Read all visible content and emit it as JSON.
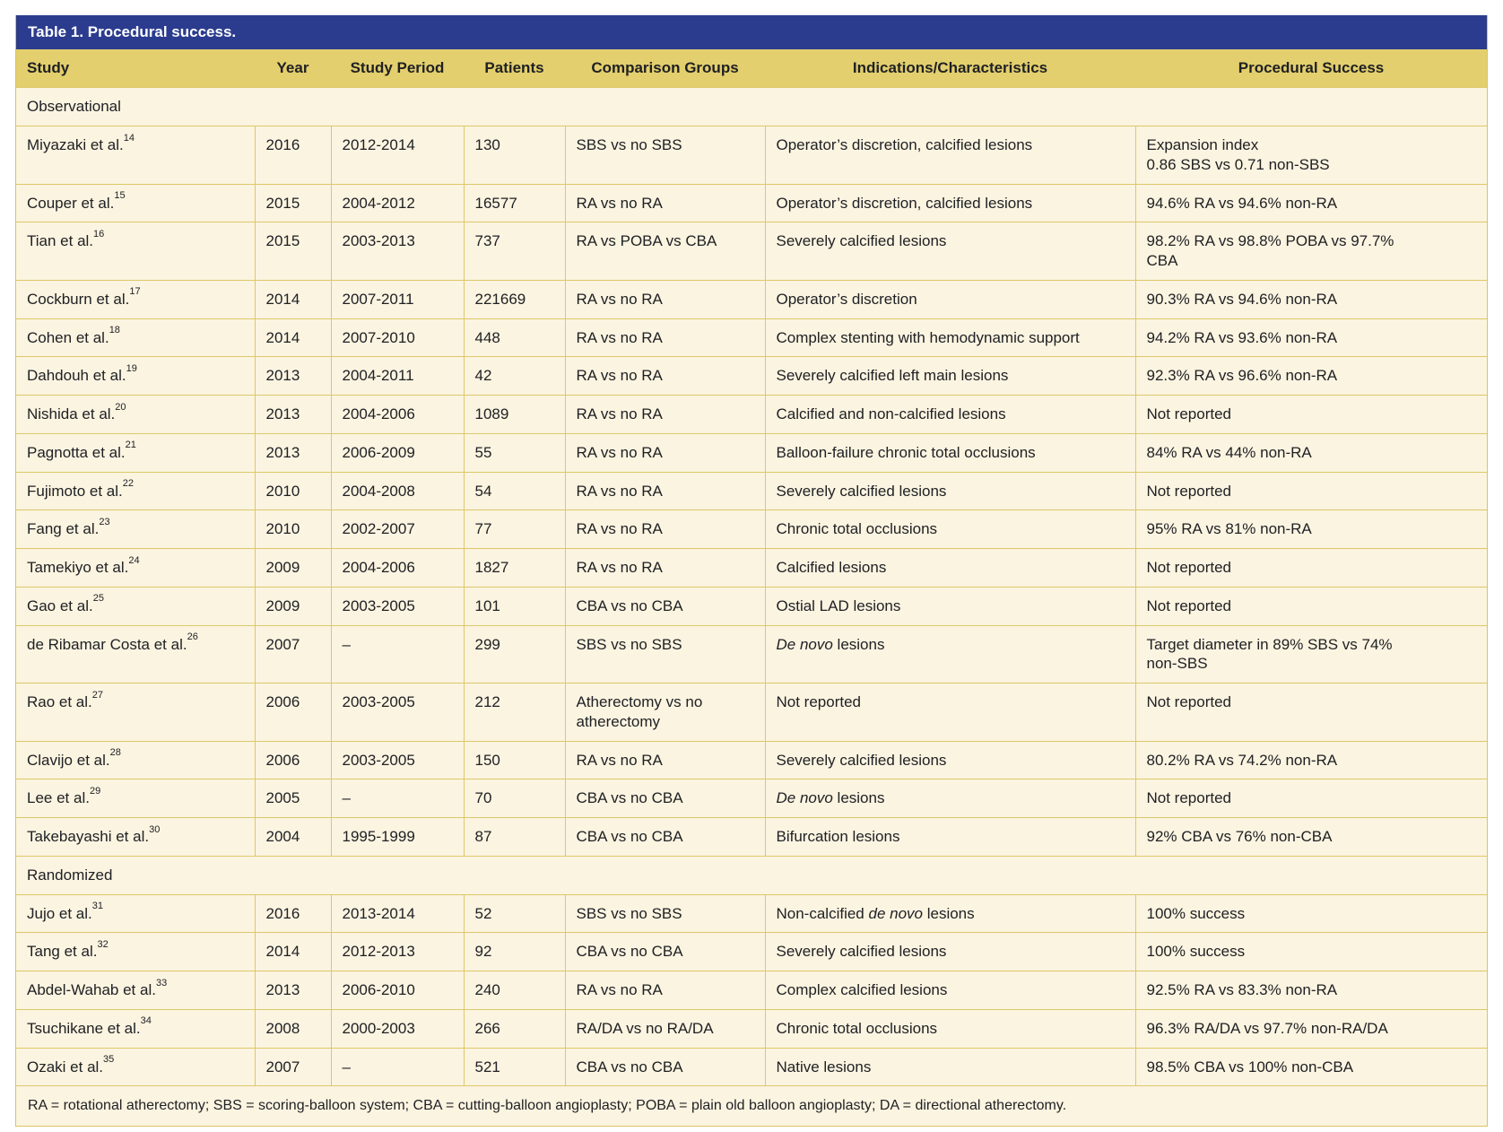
{
  "table": {
    "title": "Table 1. Procedural success.",
    "columns": [
      "Study",
      "Year",
      "Study Period",
      "Patients",
      "Comparison Groups",
      "Indications/Characteristics",
      "Procedural Success"
    ],
    "sections": [
      {
        "label": "Observational",
        "rows": [
          {
            "study": "Miyazaki et al.",
            "ref": "14",
            "year": "2016",
            "period": "2012-2014",
            "patients": "130",
            "comparison": "SBS vs no SBS",
            "indications": "Operator’s discretion, calcified lesions",
            "success": "Expansion index\n0.86 SBS vs 0.71 non-SBS"
          },
          {
            "study": "Couper et al.",
            "ref": "15",
            "year": "2015",
            "period": "2004-2012",
            "patients": "16577",
            "comparison": "RA vs no RA",
            "indications": "Operator’s discretion, calcified lesions",
            "success": "94.6% RA vs 94.6% non-RA"
          },
          {
            "study": "Tian et al.",
            "ref": "16",
            "year": "2015",
            "period": "2003-2013",
            "patients": "737",
            "comparison": "RA vs POBA vs CBA",
            "indications": "Severely calcified lesions",
            "success": "98.2% RA vs 98.8% POBA vs 97.7%\nCBA"
          },
          {
            "study": "Cockburn et al.",
            "ref": "17",
            "year": "2014",
            "period": "2007-2011",
            "patients": "221669",
            "comparison": "RA vs no RA",
            "indications": "Operator’s discretion",
            "success": "90.3% RA vs 94.6% non-RA"
          },
          {
            "study": "Cohen et al.",
            "ref": "18",
            "year": "2014",
            "period": "2007-2010",
            "patients": "448",
            "comparison": "RA vs no RA",
            "indications": "Complex stenting with hemodynamic support",
            "success": "94.2% RA vs 93.6% non-RA"
          },
          {
            "study": "Dahdouh et al.",
            "ref": "19",
            "year": "2013",
            "period": "2004-2011",
            "patients": "42",
            "comparison": "RA vs no RA",
            "indications": "Severely calcified left main lesions",
            "success": "92.3% RA vs 96.6% non-RA"
          },
          {
            "study": "Nishida et al.",
            "ref": "20",
            "year": "2013",
            "period": "2004-2006",
            "patients": "1089",
            "comparison": "RA vs no RA",
            "indications": "Calcified and non-calcified lesions",
            "success": "Not reported"
          },
          {
            "study": "Pagnotta et al.",
            "ref": "21",
            "year": "2013",
            "period": "2006-2009",
            "patients": "55",
            "comparison": "RA vs no RA",
            "indications": "Balloon-failure chronic total occlusions",
            "success": "84% RA vs 44% non-RA"
          },
          {
            "study": "Fujimoto et al.",
            "ref": "22",
            "year": "2010",
            "period": "2004-2008",
            "patients": "54",
            "comparison": "RA vs no RA",
            "indications": "Severely calcified lesions",
            "success": "Not reported"
          },
          {
            "study": "Fang et al.",
            "ref": "23",
            "year": "2010",
            "period": "2002-2007",
            "patients": "77",
            "comparison": "RA vs no RA",
            "indications": "Chronic total occlusions",
            "success": "95% RA vs 81% non-RA"
          },
          {
            "study": "Tamekiyo et al.",
            "ref": "24",
            "year": "2009",
            "period": "2004-2006",
            "patients": "1827",
            "comparison": "RA vs no RA",
            "indications": "Calcified lesions",
            "success": "Not reported"
          },
          {
            "study": "Gao et al.",
            "ref": "25",
            "year": "2009",
            "period": "2003-2005",
            "patients": "101",
            "comparison": "CBA vs no CBA",
            "indications": "Ostial LAD lesions",
            "success": "Not reported"
          },
          {
            "study": "de Ribamar Costa et al.",
            "ref": "26",
            "year": "2007",
            "period": "–",
            "patients": "299",
            "comparison": "SBS vs no SBS",
            "indications": "*De novo* lesions",
            "success": "Target diameter in 89% SBS vs 74%\nnon-SBS"
          },
          {
            "study": "Rao et al.",
            "ref": "27",
            "year": "2006",
            "period": "2003-2005",
            "patients": "212",
            "comparison": "Atherectomy vs no atherectomy",
            "indications": "Not reported",
            "success": "Not reported"
          },
          {
            "study": "Clavijo et al.",
            "ref": "28",
            "year": "2006",
            "period": "2003-2005",
            "patients": "150",
            "comparison": "RA vs no RA",
            "indications": "Severely calcified lesions",
            "success": "80.2% RA vs 74.2% non-RA"
          },
          {
            "study": "Lee et al.",
            "ref": "29",
            "year": "2005",
            "period": "–",
            "patients": "70",
            "comparison": "CBA vs no CBA",
            "indications": "*De novo* lesions",
            "success": "Not reported"
          },
          {
            "study": "Takebayashi et al.",
            "ref": "30",
            "year": "2004",
            "period": "1995-1999",
            "patients": "87",
            "comparison": "CBA vs no CBA",
            "indications": "Bifurcation lesions",
            "success": "92% CBA vs 76% non-CBA"
          }
        ]
      },
      {
        "label": "Randomized",
        "rows": [
          {
            "study": "Jujo et al.",
            "ref": "31",
            "year": "2016",
            "period": "2013-2014",
            "patients": "52",
            "comparison": "SBS vs no SBS",
            "indications": "Non-calcified *de novo* lesions",
            "success": "100% success"
          },
          {
            "study": "Tang et al.",
            "ref": "32",
            "year": "2014",
            "period": "2012-2013",
            "patients": "92",
            "comparison": "CBA vs no CBA",
            "indications": "Severely calcified lesions",
            "success": "100% success"
          },
          {
            "study": "Abdel-Wahab et al.",
            "ref": "33",
            "year": "2013",
            "period": "2006-2010",
            "patients": "240",
            "comparison": "RA vs no RA",
            "indications": "Complex calcified lesions",
            "success": "92.5% RA vs 83.3% non-RA"
          },
          {
            "study": "Tsuchikane et al.",
            "ref": "34",
            "year": "2008",
            "period": "2000-2003",
            "patients": "266",
            "comparison": "RA/DA vs no RA/DA",
            "indications": "Chronic total occlusions",
            "success": "96.3% RA/DA vs 97.7% non-RA/DA"
          },
          {
            "study": "Ozaki et al.",
            "ref": "35",
            "year": "2007",
            "period": "–",
            "patients": "521",
            "comparison": "CBA vs no CBA",
            "indications": "Native lesions",
            "success": "98.5% CBA vs 100% non-CBA"
          }
        ]
      }
    ],
    "footnote": "RA = rotational atherectomy; SBS = scoring-balloon system; CBA = cutting-balloon angioplasty; POBA = plain old balloon angioplasty; DA = directional atherectomy."
  },
  "colors": {
    "title_bar_bg": "#2b3c8e",
    "title_text": "#ffffff",
    "column_header_bg": "#e3cf6d",
    "row_bg": "#fbf4e1",
    "border": "#d9c45f",
    "text": "#202124"
  }
}
